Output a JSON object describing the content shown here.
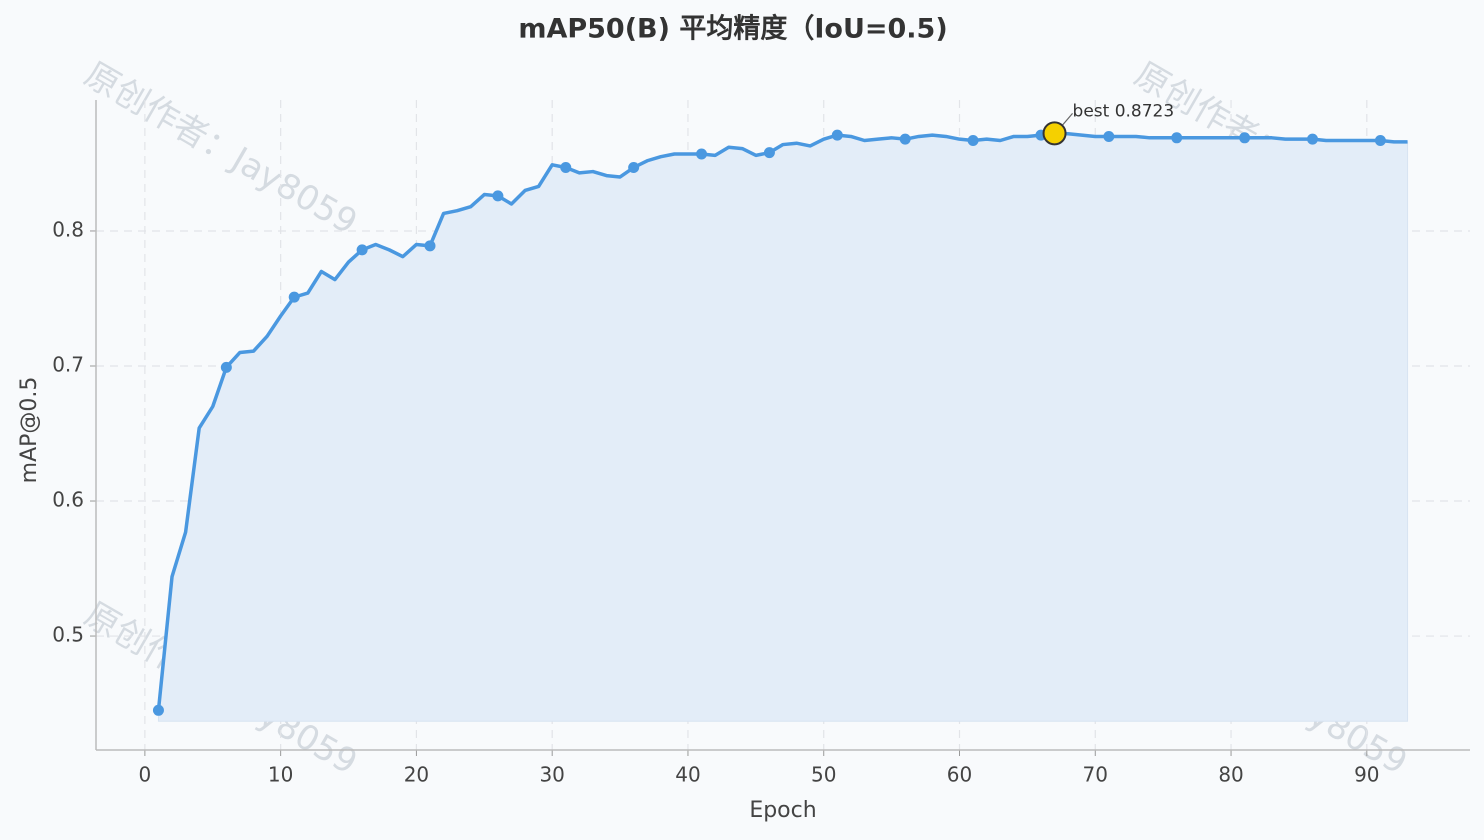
{
  "chart_data": {
    "type": "line",
    "title": "mAP50(B) 平均精度（IoU=0.5)",
    "x_label": "Epoch",
    "y_label": "mAP@0.5",
    "watermark": "原创作者：Jay8059",
    "x": [
      1,
      2,
      3,
      4,
      5,
      6,
      7,
      8,
      9,
      10,
      11,
      12,
      13,
      14,
      15,
      16,
      17,
      18,
      19,
      20,
      21,
      22,
      23,
      24,
      25,
      26,
      27,
      28,
      29,
      30,
      31,
      32,
      33,
      34,
      35,
      36,
      37,
      38,
      39,
      40,
      41,
      42,
      43,
      44,
      45,
      46,
      47,
      48,
      49,
      50,
      51,
      52,
      53,
      54,
      55,
      56,
      57,
      58,
      59,
      60,
      61,
      62,
      63,
      64,
      65,
      66,
      67,
      68,
      69,
      70,
      71,
      72,
      73,
      74,
      75,
      76,
      77,
      78,
      79,
      80,
      81,
      82,
      83,
      84,
      85,
      86,
      87,
      88,
      89,
      90,
      91,
      92,
      93
    ],
    "series": [
      {
        "name": "mAP@0.5",
        "color": "#4a98e0",
        "fill": "#e3edf8",
        "values": [
          0.445,
          0.544,
          0.577,
          0.654,
          0.67,
          0.699,
          0.71,
          0.711,
          0.722,
          0.737,
          0.751,
          0.754,
          0.77,
          0.764,
          0.777,
          0.786,
          0.79,
          0.786,
          0.781,
          0.79,
          0.789,
          0.813,
          0.815,
          0.818,
          0.827,
          0.826,
          0.82,
          0.83,
          0.833,
          0.849,
          0.847,
          0.843,
          0.844,
          0.841,
          0.84,
          0.847,
          0.852,
          0.855,
          0.857,
          0.857,
          0.857,
          0.856,
          0.862,
          0.861,
          0.856,
          0.858,
          0.864,
          0.865,
          0.863,
          0.868,
          0.871,
          0.87,
          0.867,
          0.868,
          0.869,
          0.868,
          0.87,
          0.871,
          0.87,
          0.868,
          0.867,
          0.868,
          0.867,
          0.87,
          0.87,
          0.871,
          0.8723,
          0.872,
          0.871,
          0.87,
          0.87,
          0.87,
          0.87,
          0.869,
          0.869,
          0.869,
          0.869,
          0.869,
          0.869,
          0.869,
          0.869,
          0.869,
          0.869,
          0.868,
          0.868,
          0.868,
          0.867,
          0.867,
          0.867,
          0.867,
          0.867,
          0.866,
          0.866
        ]
      }
    ],
    "annotations": [
      {
        "text": "best 0.8723",
        "x": 67,
        "y": 0.8723,
        "color": "#f5d000"
      }
    ],
    "xlim": [
      -3.6,
      97.6
    ],
    "ylim": [
      0.4156,
      0.897
    ],
    "xticks": [
      0,
      10,
      20,
      30,
      40,
      50,
      60,
      70,
      80,
      90
    ],
    "yticks": [
      0.5,
      0.6,
      0.7,
      0.8
    ],
    "grid": true
  }
}
